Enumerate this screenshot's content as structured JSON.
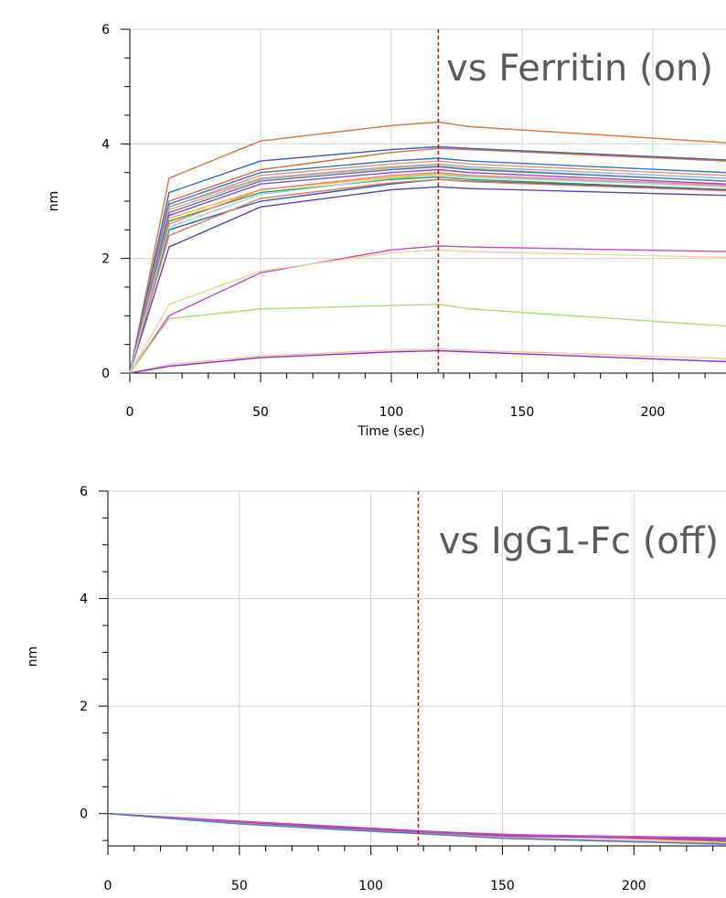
{
  "chart_data": [
    {
      "type": "line",
      "annotation": "vs Ferritin (on)",
      "xlabel": "Time (sec)",
      "ylabel": "nm",
      "xlim": [
        0,
        228
      ],
      "ylim": [
        0,
        6
      ],
      "xticks": [
        "0",
        "50",
        "100",
        "150",
        "200"
      ],
      "yticks": [
        "0",
        "2",
        "4",
        "6"
      ],
      "grid": true,
      "marker_x": 118,
      "marker_color": "#dd0000",
      "series": [
        {
          "color": "#f06a3a",
          "values": [
            [
              0,
              0
            ],
            [
              15,
              3.4
            ],
            [
              50,
              4.05
            ],
            [
              100,
              4.32
            ],
            [
              118,
              4.38
            ],
            [
              130,
              4.3
            ],
            [
              228,
              4.02
            ]
          ]
        },
        {
          "color": "#2a5fd0",
          "values": [
            [
              0,
              0
            ],
            [
              15,
              3.15
            ],
            [
              50,
              3.7
            ],
            [
              100,
              3.9
            ],
            [
              118,
              3.95
            ],
            [
              130,
              3.92
            ],
            [
              228,
              3.72
            ]
          ]
        },
        {
          "color": "#e2673a",
          "values": [
            [
              0,
              0
            ],
            [
              15,
              3.0
            ],
            [
              50,
              3.55
            ],
            [
              100,
              3.85
            ],
            [
              118,
              3.92
            ],
            [
              130,
              3.9
            ],
            [
              228,
              3.7
            ]
          ]
        },
        {
          "color": "#2f6fd6",
          "values": [
            [
              0,
              0
            ],
            [
              15,
              2.95
            ],
            [
              50,
              3.5
            ],
            [
              100,
              3.7
            ],
            [
              118,
              3.75
            ],
            [
              130,
              3.7
            ],
            [
              228,
              3.5
            ]
          ]
        },
        {
          "color": "#f0905a",
          "values": [
            [
              0,
              0
            ],
            [
              15,
              2.9
            ],
            [
              50,
              3.45
            ],
            [
              100,
              3.65
            ],
            [
              118,
              3.7
            ],
            [
              130,
              3.65
            ],
            [
              228,
              3.45
            ]
          ]
        },
        {
          "color": "#7fb2e5",
          "values": [
            [
              0,
              0
            ],
            [
              15,
              2.9
            ],
            [
              50,
              3.4
            ],
            [
              100,
              3.6
            ],
            [
              118,
              3.65
            ],
            [
              130,
              3.6
            ],
            [
              228,
              3.4
            ]
          ]
        },
        {
          "color": "#f4a35c",
          "values": [
            [
              0,
              0
            ],
            [
              15,
              2.85
            ],
            [
              50,
              3.38
            ],
            [
              100,
              3.58
            ],
            [
              118,
              3.62
            ],
            [
              130,
              3.57
            ],
            [
              228,
              3.35
            ]
          ]
        },
        {
          "color": "#3a7bd5",
          "values": [
            [
              0,
              0
            ],
            [
              15,
              2.8
            ],
            [
              50,
              3.35
            ],
            [
              100,
              3.55
            ],
            [
              118,
              3.6
            ],
            [
              130,
              3.55
            ],
            [
              228,
              3.35
            ]
          ]
        },
        {
          "color": "#9a3fd1",
          "values": [
            [
              0,
              0
            ],
            [
              15,
              2.75
            ],
            [
              50,
              3.3
            ],
            [
              100,
              3.5
            ],
            [
              118,
              3.55
            ],
            [
              130,
              3.5
            ],
            [
              228,
              3.3
            ]
          ]
        },
        {
          "color": "#f3c000",
          "values": [
            [
              0,
              0
            ],
            [
              15,
              2.7
            ],
            [
              50,
              3.2
            ],
            [
              100,
              3.42
            ],
            [
              118,
              3.48
            ],
            [
              130,
              3.43
            ],
            [
              228,
              3.25
            ]
          ]
        },
        {
          "color": "#2aa04a",
          "values": [
            [
              0,
              0
            ],
            [
              15,
              2.65
            ],
            [
              50,
              3.15
            ],
            [
              100,
              3.38
            ],
            [
              118,
              3.42
            ],
            [
              130,
              3.38
            ],
            [
              228,
              3.2
            ]
          ]
        },
        {
          "color": "#f08080",
          "values": [
            [
              0,
              0
            ],
            [
              15,
              2.6
            ],
            [
              50,
              3.2
            ],
            [
              100,
              3.45
            ],
            [
              118,
              3.5
            ],
            [
              130,
              3.45
            ],
            [
              228,
              3.28
            ]
          ]
        },
        {
          "color": "#1f5fbf",
          "values": [
            [
              0,
              0
            ],
            [
              15,
              2.5
            ],
            [
              50,
              3.0
            ],
            [
              100,
              3.3
            ],
            [
              118,
              3.38
            ],
            [
              130,
              3.35
            ],
            [
              228,
              3.2
            ]
          ]
        },
        {
          "color": "#5a3fc8",
          "values": [
            [
              0,
              0
            ],
            [
              15,
              2.2
            ],
            [
              50,
              2.9
            ],
            [
              100,
              3.2
            ],
            [
              118,
              3.25
            ],
            [
              130,
              3.22
            ],
            [
              228,
              3.1
            ]
          ]
        },
        {
          "color": "#f07050",
          "values": [
            [
              0,
              0
            ],
            [
              15,
              2.4
            ],
            [
              50,
              3.05
            ],
            [
              100,
              3.32
            ],
            [
              118,
              3.38
            ],
            [
              130,
              3.34
            ],
            [
              228,
              3.18
            ]
          ]
        },
        {
          "color": "#9acfe6",
          "values": [
            [
              0,
              0
            ],
            [
              15,
              2.55
            ],
            [
              50,
              3.12
            ],
            [
              100,
              3.4
            ],
            [
              118,
              3.45
            ],
            [
              130,
              3.42
            ],
            [
              228,
              3.26
            ]
          ]
        },
        {
          "color": "#d040c8",
          "values": [
            [
              0,
              0
            ],
            [
              15,
              1.0
            ],
            [
              50,
              1.75
            ],
            [
              100,
              2.15
            ],
            [
              118,
              2.22
            ],
            [
              130,
              2.2
            ],
            [
              228,
              2.12
            ]
          ]
        },
        {
          "color": "#f5d08a",
          "values": [
            [
              0,
              0
            ],
            [
              15,
              1.2
            ],
            [
              50,
              1.78
            ],
            [
              100,
              2.1
            ],
            [
              118,
              2.15
            ],
            [
              130,
              2.12
            ],
            [
              228,
              2.02
            ]
          ]
        },
        {
          "color": "#a6e06a",
          "values": [
            [
              0,
              0
            ],
            [
              15,
              0.95
            ],
            [
              50,
              1.12
            ],
            [
              100,
              1.18
            ],
            [
              118,
              1.2
            ],
            [
              130,
              1.12
            ],
            [
              228,
              0.82
            ]
          ]
        },
        {
          "color": "#f6c0a0",
          "values": [
            [
              0,
              0
            ],
            [
              15,
              0.15
            ],
            [
              50,
              0.3
            ],
            [
              100,
              0.4
            ],
            [
              118,
              0.42
            ],
            [
              130,
              0.4
            ],
            [
              228,
              0.25
            ]
          ]
        },
        {
          "color": "#8a2ad0",
          "values": [
            [
              0,
              0
            ],
            [
              15,
              0.12
            ],
            [
              50,
              0.27
            ],
            [
              100,
              0.37
            ],
            [
              118,
              0.39
            ],
            [
              130,
              0.37
            ],
            [
              228,
              0.2
            ]
          ]
        }
      ]
    },
    {
      "type": "line",
      "annotation": "vs IgG1-Fc (off)",
      "xlabel": "",
      "ylabel": "nm",
      "xlim": [
        0,
        235
      ],
      "ylim": [
        -0.6,
        6
      ],
      "xticks": [
        "0",
        "50",
        "100",
        "150",
        "200"
      ],
      "yticks": [
        "0",
        "2",
        "4",
        "6"
      ],
      "grid": true,
      "marker_x": 118,
      "marker_color": "#dd0000",
      "series": [
        {
          "color": "#2a5fd0",
          "values": [
            [
              0,
              0
            ],
            [
              50,
              -0.17
            ],
            [
              100,
              -0.3
            ],
            [
              118,
              -0.35
            ],
            [
              150,
              -0.4
            ],
            [
              235,
              -0.5
            ]
          ]
        },
        {
          "color": "#f06a3a",
          "values": [
            [
              0,
              0
            ],
            [
              50,
              -0.15
            ],
            [
              100,
              -0.28
            ],
            [
              118,
              -0.33
            ],
            [
              150,
              -0.38
            ],
            [
              235,
              -0.52
            ]
          ]
        },
        {
          "color": "#9a3fd1",
          "values": [
            [
              0,
              0
            ],
            [
              50,
              -0.16
            ],
            [
              100,
              -0.29
            ],
            [
              118,
              -0.34
            ],
            [
              150,
              -0.42
            ],
            [
              235,
              -0.47
            ]
          ]
        },
        {
          "color": "#f4a35c",
          "values": [
            [
              0,
              0
            ],
            [
              50,
              -0.18
            ],
            [
              100,
              -0.32
            ],
            [
              118,
              -0.36
            ],
            [
              150,
              -0.44
            ],
            [
              235,
              -0.55
            ]
          ]
        },
        {
          "color": "#d040c8",
          "values": [
            [
              0,
              0
            ],
            [
              50,
              -0.14
            ],
            [
              100,
              -0.27
            ],
            [
              118,
              -0.32
            ],
            [
              150,
              -0.39
            ],
            [
              235,
              -0.45
            ]
          ]
        },
        {
          "color": "#3a7bd5",
          "values": [
            [
              0,
              0
            ],
            [
              50,
              -0.19
            ],
            [
              100,
              -0.33
            ],
            [
              118,
              -0.37
            ],
            [
              150,
              -0.46
            ],
            [
              235,
              -0.57
            ]
          ]
        }
      ]
    }
  ]
}
